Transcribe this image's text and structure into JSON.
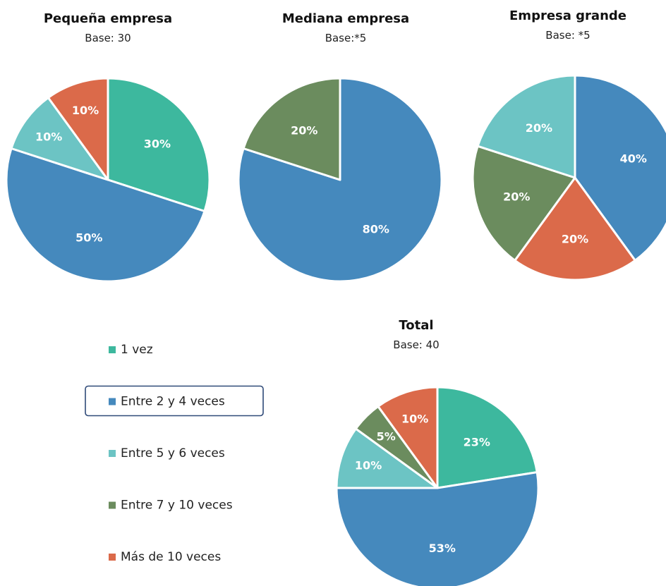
{
  "colors": {
    "1 vez": "#3DB89E",
    "Entre 2 y 4 veces": "#4589BD",
    "Entre 5 y 6 veces": "#6CC4C4",
    "Entre 7 y 10 veces": "#6B8C5E",
    "Más de 10 veces": "#DB6A4A"
  },
  "chart_data": [
    {
      "type": "pie",
      "title": "Pequeña empresa",
      "subtitle": "Base: 30",
      "slices": [
        {
          "label": "1 vez",
          "value": 30,
          "text": "30%"
        },
        {
          "label": "Entre 2 y 4 veces",
          "value": 50,
          "text": "50%"
        },
        {
          "label": "Entre 5 y 6 veces",
          "value": 10,
          "text": "10%"
        },
        {
          "label": "Más de 10 veces",
          "value": 10,
          "text": "10%"
        }
      ]
    },
    {
      "type": "pie",
      "title": "Mediana empresa",
      "subtitle": "Base:*5",
      "slices": [
        {
          "label": "Entre 2 y 4 veces",
          "value": 80,
          "text": "80%"
        },
        {
          "label": "Entre 7 y 10 veces",
          "value": 20,
          "text": "20%"
        }
      ]
    },
    {
      "type": "pie",
      "title": "Empresa grande",
      "subtitle": "Base: *5",
      "slices": [
        {
          "label": "Entre 2 y 4 veces",
          "value": 40,
          "text": "40%"
        },
        {
          "label": "Más de 10 veces",
          "value": 20,
          "text": "20%"
        },
        {
          "label": "Entre 7 y 10 veces",
          "value": 20,
          "text": "20%"
        },
        {
          "label": "Entre 5 y 6 veces",
          "value": 20,
          "text": "20%"
        }
      ]
    },
    {
      "type": "pie",
      "title": "Total",
      "subtitle": "Base: 40",
      "slices": [
        {
          "label": "1 vez",
          "value": 22.5,
          "text": "23%"
        },
        {
          "label": "Entre 2 y 4 veces",
          "value": 52.5,
          "text": "53%"
        },
        {
          "label": "Entre 5 y 6 veces",
          "value": 10,
          "text": "10%"
        },
        {
          "label": "Entre 7 y 10 veces",
          "value": 5,
          "text": "5%"
        },
        {
          "label": "Más de 10 veces",
          "value": 10,
          "text": "10%"
        }
      ]
    }
  ],
  "legend": {
    "entries": [
      "1 vez",
      "Entre 2 y 4 veces",
      "Entre 5 y 6 veces",
      "Entre 7 y 10 veces",
      "Más de 10 veces"
    ],
    "highlighted": "Entre 2 y 4 veces"
  }
}
